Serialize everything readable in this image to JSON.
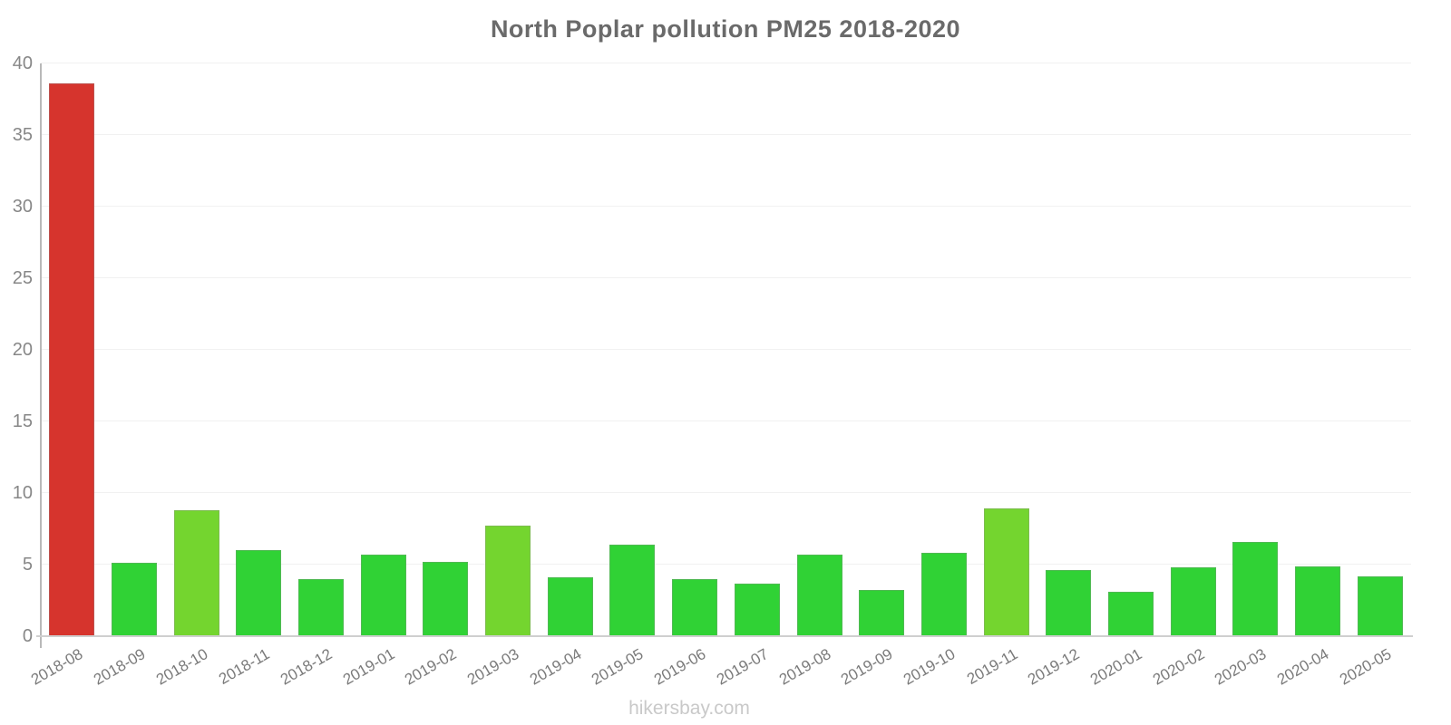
{
  "chart_data": {
    "type": "bar",
    "title": "North Poplar pollution PM25 2018-2020",
    "xlabel": "",
    "ylabel": "",
    "ylim": [
      0,
      40
    ],
    "yticks": [
      0,
      5,
      10,
      15,
      20,
      25,
      30,
      35,
      40
    ],
    "grid": "horizontal-light",
    "legend_position": "none",
    "categories": [
      "2018-08",
      "2018-09",
      "2018-10",
      "2018-11",
      "2018-12",
      "2019-01",
      "2019-02",
      "2019-03",
      "2019-04",
      "2019-05",
      "2019-06",
      "2019-07",
      "2019-08",
      "2019-09",
      "2019-10",
      "2019-11",
      "2019-12",
      "2020-01",
      "2020-02",
      "2020-03",
      "2020-04",
      "2020-05"
    ],
    "values": [
      38.6,
      5.1,
      8.8,
      6.0,
      4.0,
      5.7,
      5.2,
      7.7,
      4.1,
      6.4,
      4.0,
      3.7,
      5.7,
      3.2,
      5.8,
      8.9,
      4.6,
      3.1,
      4.8,
      6.6,
      4.9,
      4.2
    ],
    "bar_color_names": [
      "red",
      "green",
      "light_green",
      "green",
      "green",
      "green",
      "green",
      "light_green",
      "green",
      "green",
      "green",
      "green",
      "green",
      "green",
      "green",
      "light_green",
      "green",
      "green",
      "green",
      "green",
      "green",
      "green"
    ],
    "palette": {
      "red": "#d6342d",
      "green": "#30d235",
      "light_green": "#74d52f",
      "axis_line": "#b9b9b9",
      "baseline": "#cfcfcf",
      "gridline": "#f1f1f1",
      "title_text": "#6a6a6a",
      "tick_text": "#7a7a7a",
      "footer_text": "#c9c9c9"
    }
  },
  "footer": {
    "watermark": "hikersbay.com"
  }
}
